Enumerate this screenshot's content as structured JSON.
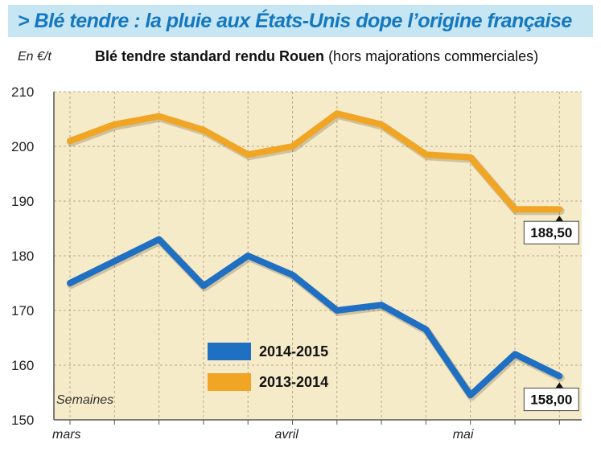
{
  "header": {
    "banner_title": "> Blé tendre : la pluie aux États-Unis dope l’origine française",
    "unit": "En €/t",
    "subtitle_main": "Blé tendre standard rendu Rouen",
    "subtitle_note": "(hors majorations commerciales)"
  },
  "colors": {
    "banner_bg": "#c7e6f4",
    "banner_text": "#1478c0",
    "plot_bg": "#f6ebc8",
    "grid": "#b8a88a",
    "series_2014_2015": "#1f6fc2",
    "series_2013_2014": "#f0a524"
  },
  "chart_data": {
    "type": "line",
    "title": "Blé tendre standard rendu Rouen",
    "ylabel": "En €/t",
    "xlabel": "Semaines",
    "ylim": [
      150,
      210
    ],
    "yticks": [
      150,
      160,
      170,
      180,
      190,
      200,
      210
    ],
    "grid": true,
    "legend_position": "bottom-left",
    "x_labels": [
      {
        "label": "mars",
        "index": 0
      },
      {
        "label": "avril",
        "index": 5
      },
      {
        "label": "mai",
        "index": 9
      }
    ],
    "series": [
      {
        "name": "2014-2015",
        "color": "#1f6fc2",
        "values": [
          175,
          179,
          183,
          174.5,
          180,
          176.5,
          170,
          171,
          166.5,
          154.5,
          162,
          158
        ],
        "end_label": "158,00"
      },
      {
        "name": "2013-2014",
        "color": "#f0a524",
        "values": [
          201,
          204,
          205.5,
          203,
          198.5,
          200,
          206,
          204,
          198.5,
          198,
          188.5,
          188.5
        ],
        "end_label": "188,50"
      }
    ]
  }
}
